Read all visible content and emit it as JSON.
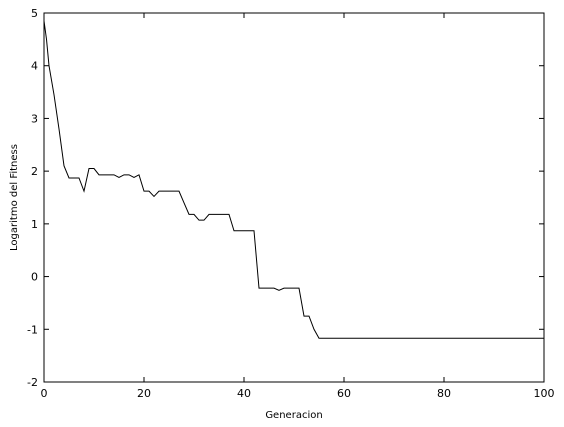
{
  "chart_data": {
    "type": "line",
    "title": "",
    "xlabel": "Generacion",
    "ylabel": "Logaritmo del Fitness",
    "xlim": [
      0,
      100
    ],
    "ylim": [
      -2,
      5
    ],
    "xticks": [
      0,
      20,
      40,
      60,
      80,
      100
    ],
    "yticks": [
      -2,
      -1,
      0,
      1,
      2,
      3,
      4,
      5
    ],
    "grid": false,
    "legend": "none",
    "line_color": "#000000",
    "series": [
      {
        "x": [
          0,
          0.5,
          1,
          2,
          3,
          4,
          5,
          6,
          7,
          8,
          9,
          10,
          11,
          12,
          13,
          14,
          15,
          16,
          17,
          18,
          19,
          20,
          21,
          22,
          23,
          24,
          25,
          26,
          27,
          28,
          29,
          30,
          31,
          32,
          33,
          34,
          35,
          36,
          37,
          38,
          39,
          40,
          41,
          42,
          43,
          44,
          45,
          46,
          47,
          48,
          49,
          50,
          51,
          52,
          53,
          54,
          55,
          60,
          70,
          80,
          90,
          100
        ],
        "y": [
          4.85,
          4.5,
          4.0,
          3.45,
          2.8,
          2.1,
          1.87,
          1.87,
          1.87,
          1.62,
          2.05,
          2.05,
          1.93,
          1.93,
          1.93,
          1.93,
          1.88,
          1.93,
          1.93,
          1.88,
          1.93,
          1.62,
          1.62,
          1.52,
          1.62,
          1.62,
          1.62,
          1.62,
          1.62,
          1.4,
          1.18,
          1.18,
          1.07,
          1.07,
          1.18,
          1.18,
          1.18,
          1.18,
          1.18,
          0.87,
          0.87,
          0.87,
          0.87,
          0.87,
          -0.22,
          -0.22,
          -0.22,
          -0.22,
          -0.26,
          -0.22,
          -0.22,
          -0.22,
          -0.22,
          -0.75,
          -0.75,
          -1.0,
          -1.17,
          -1.17,
          -1.17,
          -1.17,
          -1.17,
          -1.17
        ]
      }
    ]
  }
}
